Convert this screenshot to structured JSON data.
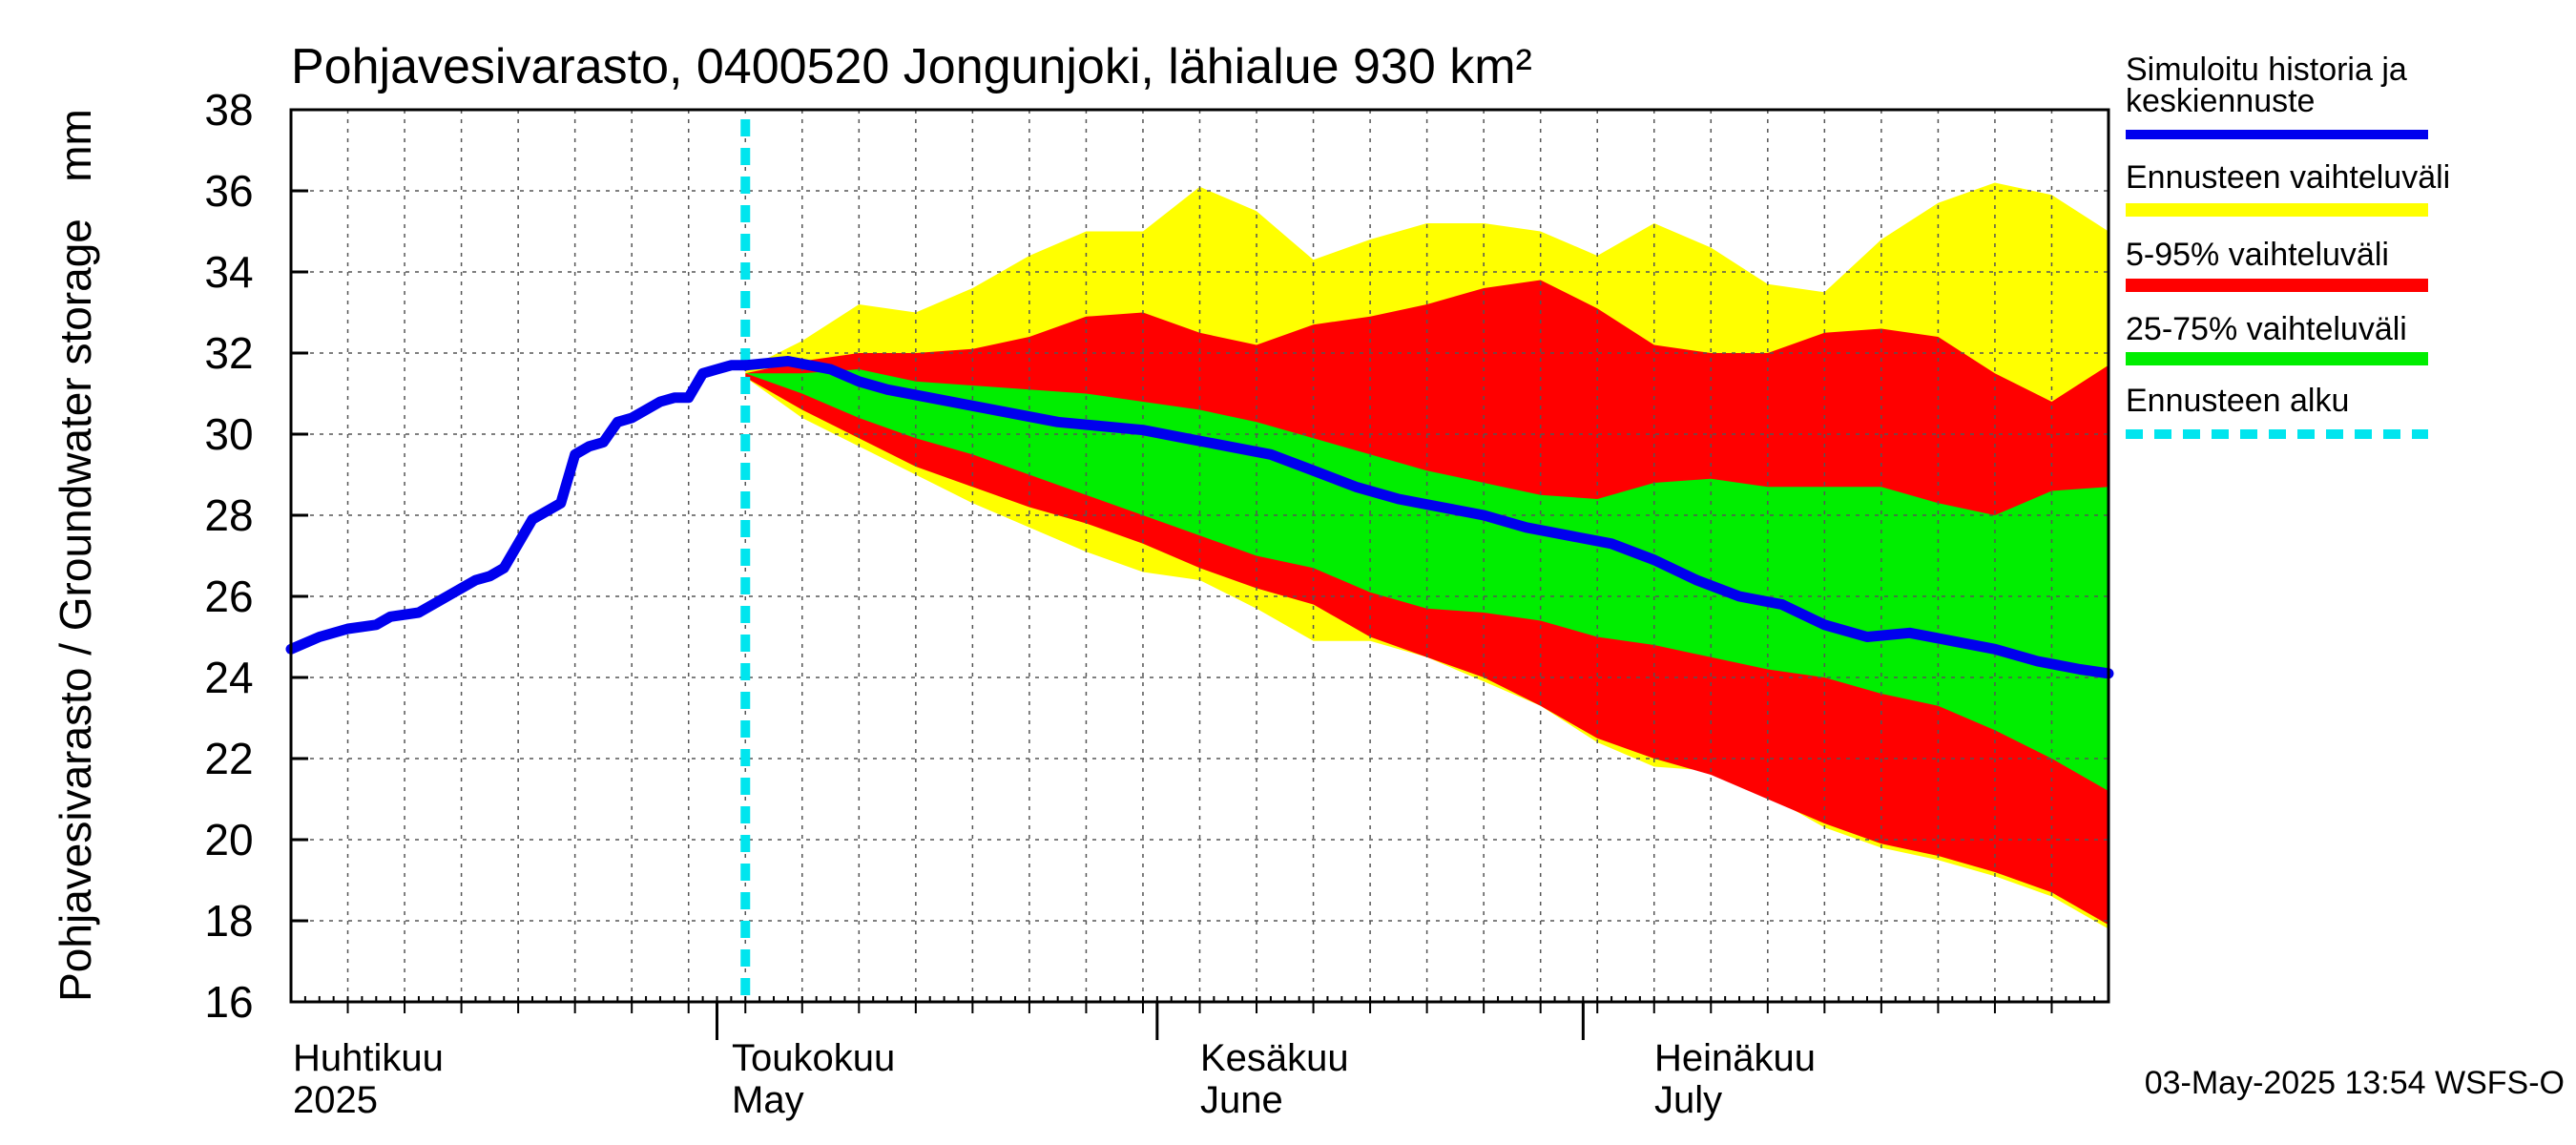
{
  "chart_data": {
    "type": "area",
    "title": "Pohjavesivarasto, 0400520 Jongunjoki, lähialue 930 km²",
    "ylabel": "Pohjavesivarasto / Groundwater storage   mm",
    "ylim": [
      16,
      38
    ],
    "yticks": [
      16,
      18,
      20,
      22,
      24,
      26,
      28,
      30,
      32,
      34,
      36,
      38
    ],
    "grid": true,
    "x_range_days": [
      0,
      128
    ],
    "forecast_start_day": 32,
    "months": [
      {
        "fi": "Huhtikuu",
        "en": "2025",
        "start_day": 0
      },
      {
        "fi": "Toukokuu",
        "en": "May",
        "start_day": 30
      },
      {
        "fi": "Kesäkuu",
        "en": "June",
        "start_day": 61
      },
      {
        "fi": "Heinäkuu",
        "en": "July",
        "start_day": 91
      }
    ],
    "legend": [
      {
        "label": "Simuloitu historia ja keskiennuste",
        "color": "#0000ee"
      },
      {
        "label": "Ennusteen vaihteluväli",
        "color": "#ffff00"
      },
      {
        "label": "5-95% vaihteluväli",
        "color": "#ff0000"
      },
      {
        "label": "25-75% vaihteluväli",
        "color": "#00ee00"
      },
      {
        "label": "Ennusteen alku",
        "color": "#00e5ee"
      }
    ],
    "history": {
      "x": [
        0,
        2,
        4,
        6,
        7,
        9,
        10,
        11,
        12,
        13,
        14,
        15,
        17,
        18,
        19,
        20,
        21,
        22,
        23,
        24,
        25,
        26,
        27,
        28,
        29,
        30,
        31,
        32
      ],
      "y": [
        24.7,
        25.0,
        25.2,
        25.3,
        25.5,
        25.6,
        25.8,
        26.0,
        26.2,
        26.4,
        26.5,
        26.7,
        27.9,
        28.1,
        28.3,
        29.5,
        29.7,
        29.8,
        30.3,
        30.4,
        30.6,
        30.8,
        30.9,
        30.9,
        31.5,
        31.6,
        31.7,
        31.7
      ]
    },
    "median": {
      "x": [
        32,
        35,
        38,
        40,
        42,
        45,
        48,
        51,
        54,
        57,
        60,
        63,
        66,
        69,
        72,
        75,
        78,
        81,
        84,
        87,
        90,
        93,
        96,
        99,
        102,
        105,
        108,
        111,
        114,
        117,
        120,
        123,
        126,
        128
      ],
      "y": [
        31.7,
        31.8,
        31.6,
        31.3,
        31.1,
        30.9,
        30.7,
        30.5,
        30.3,
        30.2,
        30.1,
        29.9,
        29.7,
        29.5,
        29.1,
        28.7,
        28.4,
        28.2,
        28.0,
        27.7,
        27.5,
        27.3,
        26.9,
        26.4,
        26.0,
        25.8,
        25.3,
        25.0,
        25.1,
        24.9,
        24.7,
        24.4,
        24.2,
        24.1
      ]
    },
    "bands": {
      "x": [
        32,
        36,
        40,
        44,
        48,
        52,
        56,
        60,
        64,
        68,
        72,
        76,
        80,
        84,
        88,
        92,
        96,
        100,
        104,
        108,
        112,
        116,
        120,
        124,
        128
      ],
      "full_max": [
        31.6,
        32.3,
        33.2,
        33.0,
        33.6,
        34.4,
        35.0,
        35.0,
        36.1,
        35.5,
        34.3,
        34.8,
        35.2,
        35.2,
        35.0,
        34.4,
        35.2,
        34.6,
        33.7,
        33.5,
        34.8,
        35.7,
        36.2,
        35.9,
        35.0
      ],
      "p95": [
        31.5,
        31.8,
        32.0,
        32.0,
        32.1,
        32.4,
        32.9,
        33.0,
        32.5,
        32.2,
        32.7,
        32.9,
        33.2,
        33.6,
        33.8,
        33.1,
        32.2,
        32.0,
        32.0,
        32.5,
        32.6,
        32.4,
        31.5,
        30.8,
        31.7
      ],
      "p75": [
        31.5,
        31.5,
        31.6,
        31.3,
        31.2,
        31.1,
        31.0,
        30.8,
        30.6,
        30.3,
        29.9,
        29.5,
        29.1,
        28.8,
        28.5,
        28.4,
        28.8,
        28.9,
        28.7,
        28.7,
        28.7,
        28.3,
        28.0,
        28.6,
        28.7
      ],
      "p25": [
        31.5,
        31.0,
        30.4,
        29.9,
        29.5,
        29.0,
        28.5,
        28.0,
        27.5,
        27.0,
        26.7,
        26.1,
        25.7,
        25.6,
        25.4,
        25.0,
        24.8,
        24.5,
        24.2,
        24.0,
        23.6,
        23.3,
        22.7,
        22.0,
        21.2
      ],
      "p5": [
        31.4,
        30.6,
        29.9,
        29.2,
        28.7,
        28.2,
        27.8,
        27.3,
        26.7,
        26.2,
        25.8,
        25.0,
        24.5,
        24.0,
        23.3,
        22.5,
        22.0,
        21.6,
        21.0,
        20.4,
        19.9,
        19.6,
        19.2,
        18.7,
        17.9
      ],
      "full_min": [
        31.4,
        30.4,
        29.7,
        29.0,
        28.3,
        27.7,
        27.1,
        26.6,
        26.4,
        25.7,
        24.9,
        24.9,
        24.5,
        23.9,
        23.3,
        22.4,
        21.8,
        21.7,
        21.1,
        20.3,
        19.8,
        19.5,
        19.1,
        18.6,
        17.8
      ]
    },
    "footer": "03-May-2025 13:54 WSFS-O"
  }
}
